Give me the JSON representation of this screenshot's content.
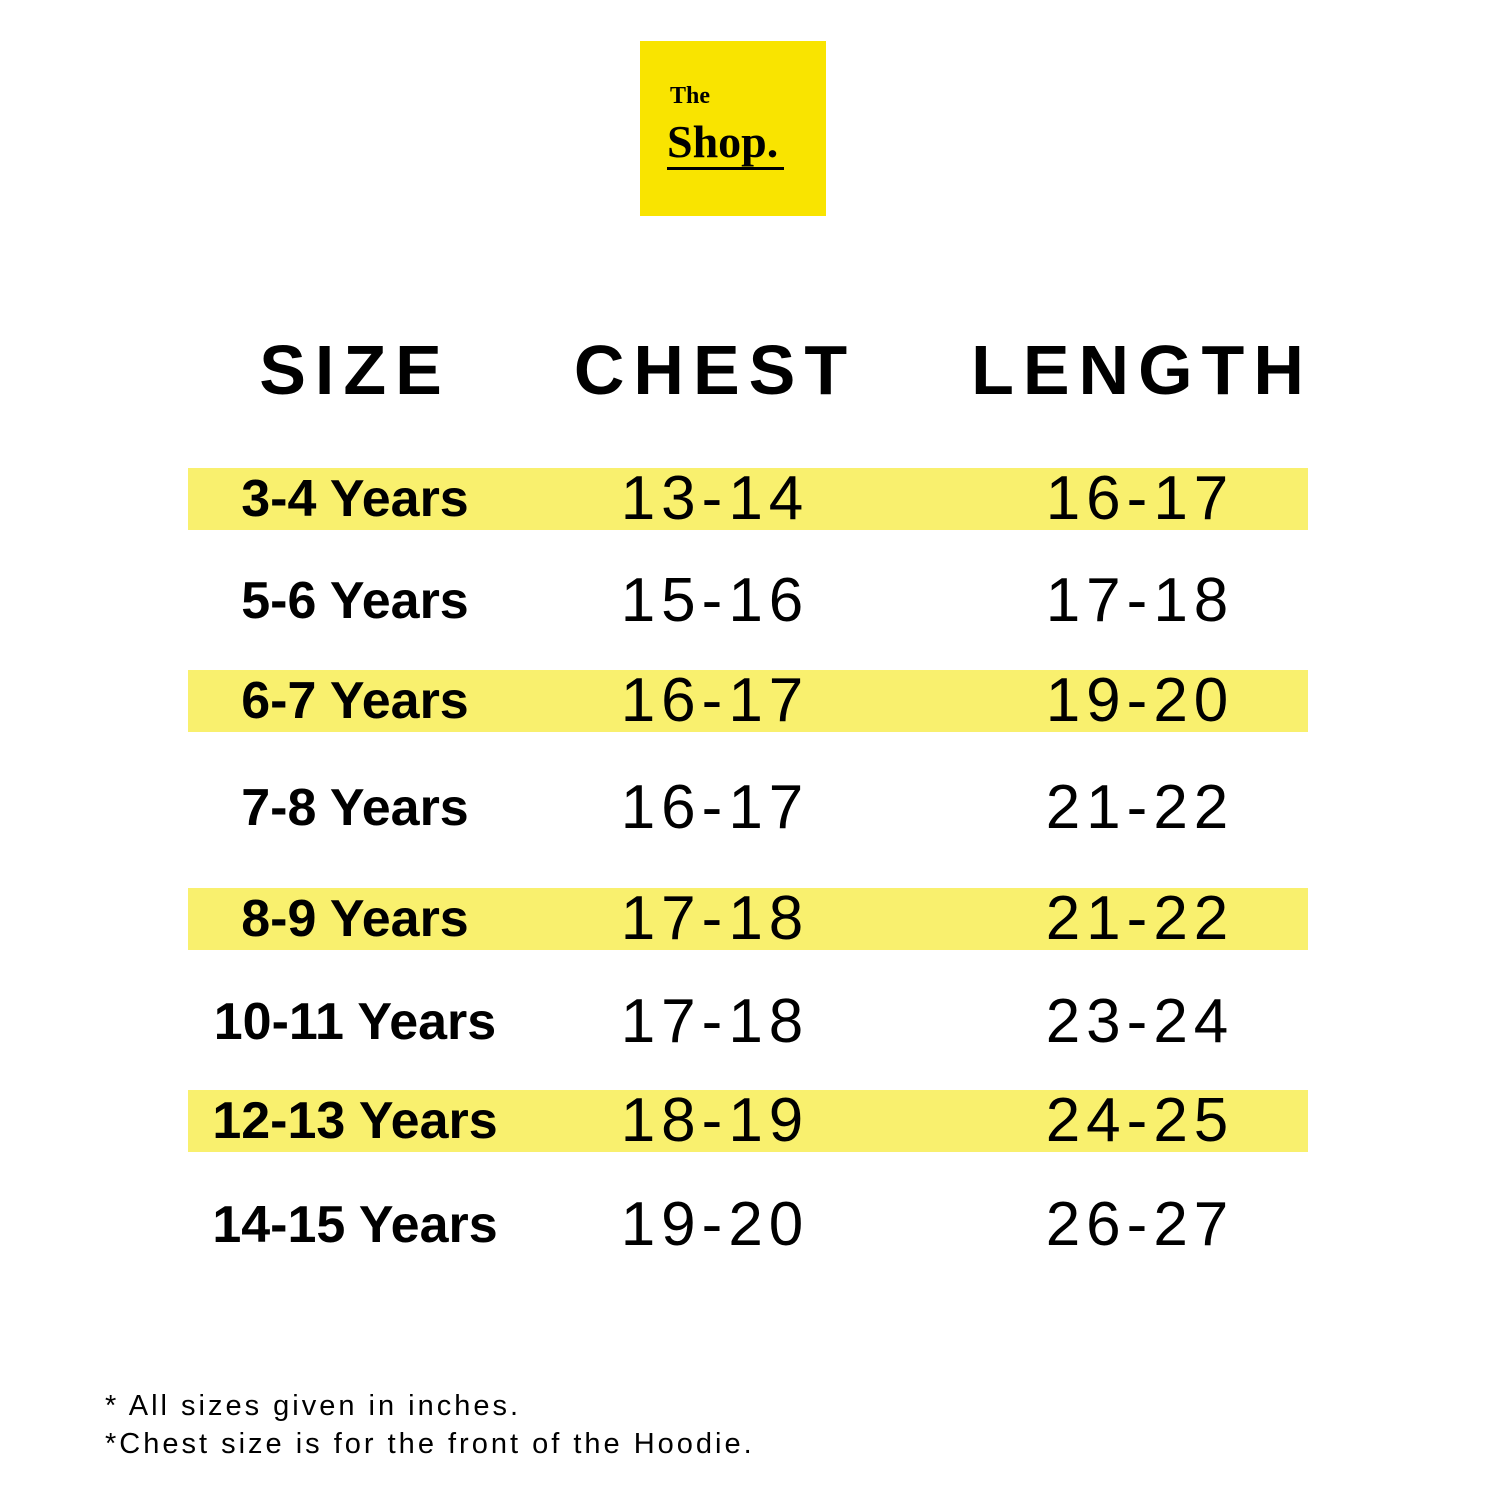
{
  "logo": {
    "line1": "The",
    "line2": "Shop."
  },
  "table": {
    "headers": [
      "SIZE",
      "CHEST",
      "LENGTH"
    ],
    "rows": [
      [
        "3-4 Years",
        "13-14",
        "16-17"
      ],
      [
        "5-6 Years",
        "15-16",
        "17-18"
      ],
      [
        "6-7 Years",
        "16-17",
        "19-20"
      ],
      [
        "7-8 Years",
        "16-17",
        "21-22"
      ],
      [
        "8-9 Years",
        "17-18",
        "21-22"
      ],
      [
        "10-11 Years",
        "17-18",
        "23-24"
      ],
      [
        "12-13 Years",
        "18-19",
        "24-25"
      ],
      [
        "14-15 Years",
        "19-20",
        "26-27"
      ]
    ]
  },
  "notes": [
    "*  All sizes given in inches.",
    "*Chest size is for the front of the Hoodie."
  ]
}
